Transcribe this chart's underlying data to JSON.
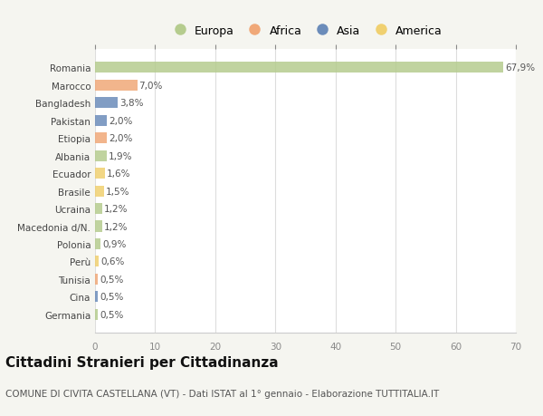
{
  "countries": [
    "Romania",
    "Marocco",
    "Bangladesh",
    "Pakistan",
    "Etiopia",
    "Albania",
    "Ecuador",
    "Brasile",
    "Ucraina",
    "Macedonia d/N.",
    "Polonia",
    "Perù",
    "Tunisia",
    "Cina",
    "Germania"
  ],
  "values": [
    67.9,
    7.0,
    3.8,
    2.0,
    2.0,
    1.9,
    1.6,
    1.5,
    1.2,
    1.2,
    0.9,
    0.6,
    0.5,
    0.5,
    0.5
  ],
  "labels": [
    "67,9%",
    "7,0%",
    "3,8%",
    "2,0%",
    "2,0%",
    "1,9%",
    "1,6%",
    "1,5%",
    "1,2%",
    "1,2%",
    "0,9%",
    "0,6%",
    "0,5%",
    "0,5%",
    "0,5%"
  ],
  "continents": [
    "Europa",
    "Africa",
    "Asia",
    "Asia",
    "Africa",
    "Europa",
    "America",
    "America",
    "Europa",
    "Europa",
    "Europa",
    "America",
    "Africa",
    "Asia",
    "Europa"
  ],
  "continent_colors": {
    "Europa": "#b5cc8e",
    "Africa": "#f0a878",
    "Asia": "#6b8cba",
    "America": "#f0d070"
  },
  "legend_order": [
    "Europa",
    "Africa",
    "Asia",
    "America"
  ],
  "legend_colors": [
    "#b5cc8e",
    "#f0a878",
    "#6b8cba",
    "#f0d070"
  ],
  "xlim": [
    0,
    70
  ],
  "xticks": [
    0,
    10,
    20,
    30,
    40,
    50,
    60,
    70
  ],
  "background_color": "#f5f5f0",
  "plot_bg_color": "#ffffff",
  "grid_color": "#dddddd",
  "title": "Cittadini Stranieri per Cittadinanza",
  "subtitle": "COMUNE DI CIVITA CASTELLANA (VT) - Dati ISTAT al 1° gennaio - Elaborazione TUTTITALIA.IT",
  "bar_height": 0.62,
  "label_fontsize": 7.5,
  "axis_label_fontsize": 7.5,
  "tick_fontsize": 7.5,
  "title_fontsize": 11,
  "subtitle_fontsize": 7.5
}
